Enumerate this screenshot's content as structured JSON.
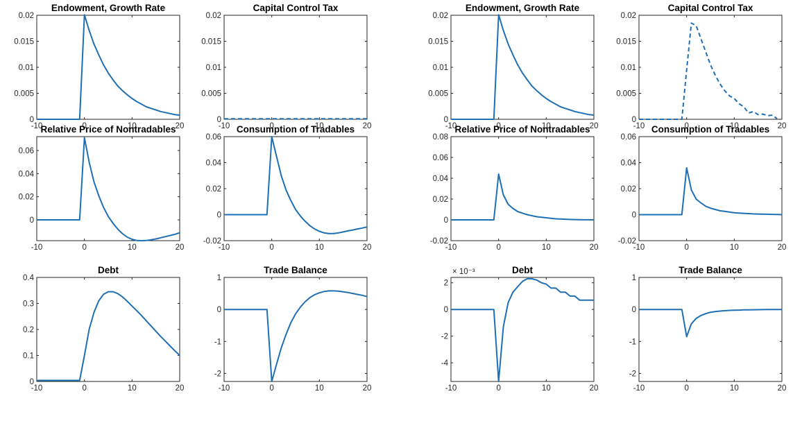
{
  "colors": {
    "line": "#1f6fb4",
    "axis": "#262626"
  },
  "chart_data": [
    {
      "type": "line",
      "title": "Endowment, Growth Rate",
      "xlim": [
        -10,
        20
      ],
      "ylim": [
        0,
        0.02
      ],
      "xticks": [
        -10,
        0,
        10,
        20
      ],
      "xtick_labels": [
        "-10",
        "0",
        "10",
        "20"
      ],
      "yticks": [
        0,
        0.005,
        0.01,
        0.015,
        0.02
      ],
      "ytick_labels": [
        "0",
        "0.005",
        "0.01",
        "0.015",
        "0.02"
      ],
      "exponent_label": "",
      "series": [
        {
          "style": "solid",
          "x": [
            -10,
            -1,
            0,
            1,
            2,
            3,
            4,
            5,
            6,
            7,
            8,
            9,
            10,
            11,
            12,
            13,
            14,
            15,
            16,
            17,
            18,
            19,
            20
          ],
          "y": [
            0,
            0,
            0.0201,
            0.0171,
            0.0145,
            0.0124,
            0.0105,
            0.0089,
            0.0076,
            0.0064,
            0.0055,
            0.0047,
            0.004,
            0.0034,
            0.0029,
            0.0024,
            0.0021,
            0.0018,
            0.0015,
            0.0013,
            0.0011,
            0.0009,
            0.0008
          ]
        }
      ]
    },
    {
      "type": "line",
      "title": "Capital Control Tax",
      "xlim": [
        -10,
        20
      ],
      "ylim": [
        0,
        0.02
      ],
      "xticks": [
        -10,
        0,
        10,
        20
      ],
      "xtick_labels": [
        "-10",
        "0",
        "10",
        "20"
      ],
      "yticks": [
        0,
        0.005,
        0.01,
        0.015,
        0.02
      ],
      "ytick_labels": [
        "0",
        "0.005",
        "0.01",
        "0.015",
        "0.02"
      ],
      "exponent_label": "",
      "series": [
        {
          "style": "dashed",
          "x": [
            -10,
            20
          ],
          "y": [
            0.0001,
            0.0001
          ]
        }
      ]
    },
    {
      "type": "line",
      "title": "Endowment, Growth Rate",
      "xlim": [
        -10,
        20
      ],
      "ylim": [
        0,
        0.02
      ],
      "xticks": [
        -10,
        0,
        10,
        20
      ],
      "xtick_labels": [
        "-10",
        "0",
        "10",
        "20"
      ],
      "yticks": [
        0,
        0.005,
        0.01,
        0.015,
        0.02
      ],
      "ytick_labels": [
        "0",
        "0.005",
        "0.01",
        "0.015",
        "0.02"
      ],
      "exponent_label": "",
      "series": [
        {
          "style": "solid",
          "x": [
            -10,
            -1,
            0,
            1,
            2,
            3,
            4,
            5,
            6,
            7,
            8,
            9,
            10,
            11,
            12,
            13,
            14,
            15,
            16,
            17,
            18,
            19,
            20
          ],
          "y": [
            0,
            0,
            0.0201,
            0.0171,
            0.0145,
            0.0124,
            0.0105,
            0.0089,
            0.0076,
            0.0064,
            0.0055,
            0.0047,
            0.004,
            0.0034,
            0.0029,
            0.0024,
            0.0021,
            0.0018,
            0.0015,
            0.0013,
            0.0011,
            0.0009,
            0.0008
          ]
        }
      ]
    },
    {
      "type": "line",
      "title": "Capital Control Tax",
      "xlim": [
        -10,
        20
      ],
      "ylim": [
        0,
        0.02
      ],
      "xticks": [
        -10,
        0,
        10,
        20
      ],
      "xtick_labels": [
        "-10",
        "0",
        "10",
        "20"
      ],
      "yticks": [
        0,
        0.005,
        0.01,
        0.015,
        0.02
      ],
      "ytick_labels": [
        "0",
        "0.005",
        "0.01",
        "0.015",
        "0.02"
      ],
      "exponent_label": "",
      "series": [
        {
          "style": "dashed",
          "x": [
            -10,
            -1,
            0,
            1,
            2,
            3,
            4,
            5,
            6,
            7,
            8,
            9,
            10,
            11,
            12,
            13,
            14,
            15,
            16,
            17,
            18,
            19
          ],
          "y": [
            0,
            0,
            0.0095,
            0.0185,
            0.018,
            0.0155,
            0.013,
            0.0105,
            0.0085,
            0.0068,
            0.0055,
            0.0045,
            0.004,
            0.003,
            0.0024,
            0.0012,
            0.0015,
            0.0009,
            0.001,
            0.0007,
            0.0008,
            0.0001
          ]
        }
      ]
    },
    {
      "type": "line",
      "title": "Relative Price of Nontradables",
      "xlim": [
        -10,
        20
      ],
      "ylim": [
        -0.018,
        0.072
      ],
      "xticks": [
        -10,
        0,
        10,
        20
      ],
      "xtick_labels": [
        "-10",
        "0",
        "10",
        "20"
      ],
      "yticks": [
        0,
        0.02,
        0.04,
        0.06
      ],
      "ytick_labels": [
        "0",
        "0.02",
        "0.04",
        "0.06"
      ],
      "exponent_label": "",
      "series": [
        {
          "style": "solid",
          "x": [
            -10,
            -1,
            0,
            1,
            2,
            3,
            4,
            5,
            6,
            7,
            8,
            9,
            10,
            11,
            12,
            13,
            14,
            15,
            16,
            17,
            18,
            19,
            20
          ],
          "y": [
            0,
            0,
            0.071,
            0.05,
            0.033,
            0.021,
            0.011,
            0.003,
            -0.003,
            -0.008,
            -0.012,
            -0.015,
            -0.0168,
            -0.0178,
            -0.018,
            -0.0178,
            -0.0172,
            -0.0165,
            -0.0155,
            -0.0145,
            -0.0135,
            -0.0125,
            -0.0112
          ]
        }
      ]
    },
    {
      "type": "line",
      "title": "Consumption of Tradables",
      "xlim": [
        -10,
        20
      ],
      "ylim": [
        -0.02,
        0.06
      ],
      "xticks": [
        -10,
        0,
        10,
        20
      ],
      "xtick_labels": [
        "-10",
        "0",
        "10",
        "20"
      ],
      "yticks": [
        -0.02,
        0,
        0.02,
        0.04,
        0.06
      ],
      "ytick_labels": [
        "-0.02",
        "0",
        "0.02",
        "0.04",
        "0.06"
      ],
      "exponent_label": "",
      "series": [
        {
          "style": "solid",
          "x": [
            -10,
            -1,
            0,
            1,
            2,
            3,
            4,
            5,
            6,
            7,
            8,
            9,
            10,
            11,
            12,
            13,
            14,
            15,
            16,
            17,
            18,
            19,
            20
          ],
          "y": [
            0,
            0,
            0.06,
            0.045,
            0.03,
            0.019,
            0.011,
            0.004,
            -0.001,
            -0.005,
            -0.0085,
            -0.011,
            -0.0128,
            -0.014,
            -0.0145,
            -0.0145,
            -0.014,
            -0.0133,
            -0.0125,
            -0.0118,
            -0.011,
            -0.0103,
            -0.0095
          ]
        }
      ]
    },
    {
      "type": "line",
      "title": "Relative Price of Nontradables",
      "xlim": [
        -10,
        20
      ],
      "ylim": [
        -0.02,
        0.08
      ],
      "xticks": [
        -10,
        0,
        10,
        20
      ],
      "xtick_labels": [
        "-10",
        "0",
        "10",
        "20"
      ],
      "yticks": [
        -0.02,
        0,
        0.02,
        0.04,
        0.06,
        0.08
      ],
      "ytick_labels": [
        "-0.02",
        "0",
        "0.02",
        "0.04",
        "0.06",
        "0.08"
      ],
      "exponent_label": "",
      "series": [
        {
          "style": "solid",
          "x": [
            -10,
            -1,
            0,
            1,
            2,
            3,
            4,
            5,
            6,
            7,
            8,
            9,
            10,
            11,
            12,
            13,
            14,
            15,
            16,
            17,
            18,
            19,
            20
          ],
          "y": [
            0,
            0,
            0.044,
            0.024,
            0.015,
            0.011,
            0.008,
            0.0065,
            0.005,
            0.004,
            0.003,
            0.0025,
            0.002,
            0.0015,
            0.001,
            0.0008,
            0.0006,
            0.0004,
            0.0003,
            0.0002,
            0.0001,
            0.0001,
            0
          ]
        }
      ]
    },
    {
      "type": "line",
      "title": "Consumption of Tradables",
      "xlim": [
        -10,
        20
      ],
      "ylim": [
        -0.02,
        0.06
      ],
      "xticks": [
        -10,
        0,
        10,
        20
      ],
      "xtick_labels": [
        "-10",
        "0",
        "10",
        "20"
      ],
      "yticks": [
        -0.02,
        0,
        0.02,
        0.04,
        0.06
      ],
      "ytick_labels": [
        "-0.02",
        "0",
        "0.02",
        "0.04",
        "0.06"
      ],
      "exponent_label": "",
      "series": [
        {
          "style": "solid",
          "x": [
            -10,
            -1,
            0,
            1,
            2,
            3,
            4,
            5,
            6,
            7,
            8,
            9,
            10,
            11,
            12,
            13,
            14,
            15,
            16,
            17,
            18,
            19,
            20
          ],
          "y": [
            0,
            0,
            0.036,
            0.019,
            0.012,
            0.009,
            0.0065,
            0.005,
            0.004,
            0.003,
            0.0025,
            0.002,
            0.0015,
            0.0012,
            0.001,
            0.0008,
            0.0006,
            0.0005,
            0.0004,
            0.0003,
            0.0002,
            0.0001,
            0
          ]
        }
      ]
    },
    {
      "type": "line",
      "title": "Debt",
      "xlim": [
        -10,
        20
      ],
      "ylim": [
        0,
        0.4
      ],
      "xticks": [
        -10,
        0,
        10,
        20
      ],
      "xtick_labels": [
        "-10",
        "0",
        "10",
        "20"
      ],
      "yticks": [
        0,
        0.1,
        0.2,
        0.3,
        0.4
      ],
      "ytick_labels": [
        "0",
        "0.1",
        "0.2",
        "0.3",
        "0.4"
      ],
      "exponent_label": "",
      "series": [
        {
          "style": "solid",
          "x": [
            -10,
            -1,
            0,
            1,
            2,
            3,
            4,
            5,
            6,
            7,
            8,
            9,
            10,
            11,
            12,
            13,
            14,
            15,
            16,
            17,
            18,
            19,
            20
          ],
          "y": [
            0.004,
            0.004,
            0.1,
            0.2,
            0.265,
            0.31,
            0.335,
            0.345,
            0.345,
            0.338,
            0.325,
            0.308,
            0.29,
            0.272,
            0.253,
            0.233,
            0.213,
            0.193,
            0.173,
            0.155,
            0.136,
            0.118,
            0.1
          ]
        }
      ]
    },
    {
      "type": "line",
      "title": "Trade Balance",
      "xlim": [
        -10,
        20
      ],
      "ylim": [
        -2.25,
        1
      ],
      "xticks": [
        -10,
        0,
        10,
        20
      ],
      "xtick_labels": [
        "-10",
        "0",
        "10",
        "20"
      ],
      "yticks": [
        -2,
        -1,
        0,
        1
      ],
      "ytick_labels": [
        "-2",
        "-1",
        "0",
        "1"
      ],
      "exponent_label": "",
      "series": [
        {
          "style": "solid",
          "x": [
            -10,
            -1,
            0,
            1,
            2,
            3,
            4,
            5,
            6,
            7,
            8,
            9,
            10,
            11,
            12,
            13,
            14,
            15,
            16,
            17,
            18,
            19,
            20
          ],
          "y": [
            0,
            0,
            -2.25,
            -1.72,
            -1.2,
            -0.78,
            -0.42,
            -0.14,
            0.07,
            0.24,
            0.37,
            0.46,
            0.52,
            0.56,
            0.58,
            0.58,
            0.57,
            0.55,
            0.53,
            0.5,
            0.47,
            0.44,
            0.4
          ]
        }
      ]
    },
    {
      "type": "line",
      "title": "Debt",
      "xlim": [
        -10,
        20
      ],
      "ylim": [
        -5.4,
        2.4
      ],
      "xticks": [
        -10,
        0,
        10,
        20
      ],
      "xtick_labels": [
        "-10",
        "0",
        "10",
        "20"
      ],
      "yticks": [
        -4,
        -2,
        0,
        2
      ],
      "ytick_labels": [
        "-4",
        "-2",
        "0",
        "2"
      ],
      "exponent_label": "× 10⁻³",
      "series": [
        {
          "style": "solid",
          "x": [
            -10,
            -1,
            0,
            1,
            2,
            3,
            4,
            5,
            6,
            7,
            8,
            9,
            10,
            11,
            12,
            13,
            14,
            15,
            16,
            17,
            18,
            19,
            20
          ],
          "y": [
            0,
            0,
            -5.4,
            -1.3,
            0.5,
            1.3,
            1.7,
            2.1,
            2.3,
            2.3,
            2.2,
            2.0,
            1.9,
            1.6,
            1.6,
            1.3,
            1.3,
            1.0,
            1.0,
            0.7,
            0.7,
            0.7,
            0.7
          ]
        }
      ]
    },
    {
      "type": "line",
      "title": "Trade Balance",
      "xlim": [
        -10,
        20
      ],
      "ylim": [
        -2.25,
        1
      ],
      "xticks": [
        -10,
        0,
        10,
        20
      ],
      "xtick_labels": [
        "-10",
        "0",
        "10",
        "20"
      ],
      "yticks": [
        -2,
        -1,
        0,
        1
      ],
      "ytick_labels": [
        "-2",
        "-1",
        "0",
        "1"
      ],
      "exponent_label": "",
      "series": [
        {
          "style": "solid",
          "x": [
            -10,
            -1,
            0,
            1,
            2,
            3,
            4,
            5,
            6,
            7,
            8,
            9,
            10,
            11,
            12,
            13,
            14,
            15,
            16,
            17,
            18,
            19,
            20
          ],
          "y": [
            0,
            0,
            -0.85,
            -0.45,
            -0.28,
            -0.19,
            -0.13,
            -0.09,
            -0.065,
            -0.05,
            -0.04,
            -0.03,
            -0.025,
            -0.02,
            -0.015,
            -0.012,
            -0.01,
            -0.008,
            -0.006,
            -0.004,
            -0.003,
            -0.002,
            -0.001
          ]
        }
      ]
    }
  ]
}
